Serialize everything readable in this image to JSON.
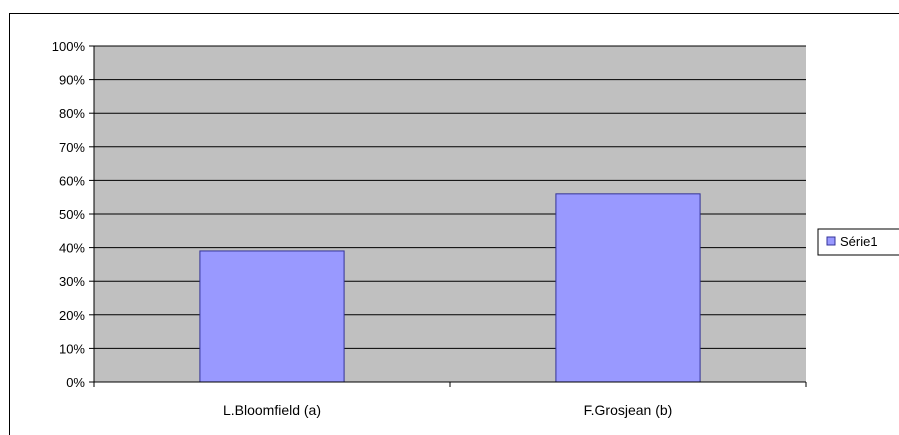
{
  "colors": {
    "plot_bg": "#c0c0c0",
    "bar_fill": "#9999ff",
    "bar_stroke": "#333399",
    "grid": "#000000"
  },
  "chart_data": {
    "type": "bar",
    "categories": [
      "L.Bloomfield (a)",
      "F.Grosjean (b)"
    ],
    "series": [
      {
        "name": "Série1",
        "values": [
          39,
          56
        ]
      }
    ],
    "ylim": [
      0,
      100
    ],
    "yticks": [
      "0%",
      "10%",
      "20%",
      "30%",
      "40%",
      "50%",
      "60%",
      "70%",
      "80%",
      "90%",
      "100%"
    ],
    "grid": true,
    "legend": "right"
  }
}
